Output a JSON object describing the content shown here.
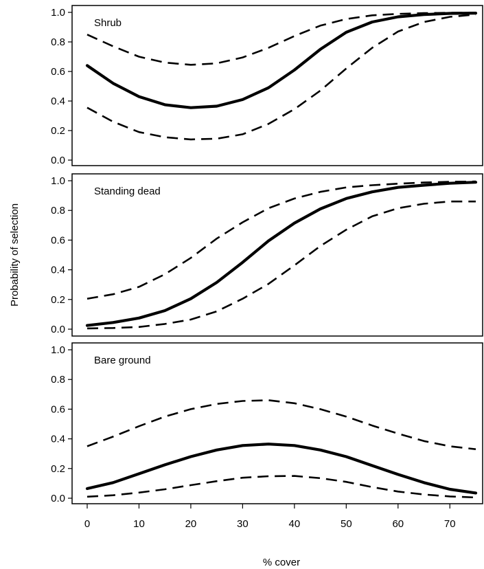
{
  "figure": {
    "ylabel": "Probability of selection",
    "xlabel": "% cover"
  },
  "chart_data": [
    {
      "type": "line",
      "title": "Shrub",
      "xlim": [
        0,
        75
      ],
      "ylim": [
        0,
        1
      ],
      "x": [
        0,
        5,
        10,
        15,
        20,
        25,
        30,
        35,
        40,
        45,
        50,
        55,
        60,
        65,
        70,
        75
      ],
      "series": [
        {
          "role": "estimate",
          "values": [
            0.64,
            0.52,
            0.43,
            0.375,
            0.355,
            0.365,
            0.41,
            0.49,
            0.61,
            0.75,
            0.865,
            0.935,
            0.97,
            0.985,
            0.993,
            0.995
          ]
        },
        {
          "role": "upper_ci",
          "values": [
            0.85,
            0.77,
            0.7,
            0.66,
            0.645,
            0.655,
            0.695,
            0.76,
            0.84,
            0.91,
            0.955,
            0.98,
            0.99,
            0.995,
            0.997,
            0.998
          ]
        },
        {
          "role": "lower_ci",
          "values": [
            0.355,
            0.26,
            0.19,
            0.155,
            0.14,
            0.145,
            0.175,
            0.245,
            0.345,
            0.47,
            0.62,
            0.76,
            0.87,
            0.935,
            0.97,
            0.985
          ]
        }
      ],
      "yticks": [
        0.0,
        0.2,
        0.4,
        0.6,
        0.8,
        1.0
      ],
      "ytick_labels": [
        "0.0",
        "0.2",
        "0.4",
        "0.6",
        "0.8",
        "1.0"
      ]
    },
    {
      "type": "line",
      "title": "Standing dead",
      "xlim": [
        0,
        75
      ],
      "ylim": [
        0,
        1
      ],
      "x": [
        0,
        5,
        10,
        15,
        20,
        25,
        30,
        35,
        40,
        45,
        50,
        55,
        60,
        65,
        70,
        75
      ],
      "series": [
        {
          "role": "estimate",
          "values": [
            0.025,
            0.045,
            0.075,
            0.125,
            0.205,
            0.315,
            0.45,
            0.595,
            0.715,
            0.81,
            0.88,
            0.925,
            0.955,
            0.97,
            0.983,
            0.99
          ]
        },
        {
          "role": "upper_ci",
          "values": [
            0.205,
            0.235,
            0.285,
            0.37,
            0.48,
            0.61,
            0.72,
            0.815,
            0.88,
            0.925,
            0.955,
            0.97,
            0.98,
            0.988,
            0.993,
            0.995
          ]
        },
        {
          "role": "lower_ci",
          "values": [
            0.005,
            0.008,
            0.015,
            0.035,
            0.065,
            0.12,
            0.205,
            0.305,
            0.43,
            0.56,
            0.67,
            0.76,
            0.815,
            0.845,
            0.86,
            0.86
          ]
        }
      ],
      "yticks": [
        0.0,
        0.2,
        0.4,
        0.6,
        0.8,
        1.0
      ],
      "ytick_labels": [
        "0.0",
        "0.2",
        "0.4",
        "0.6",
        "0.8",
        "1.0"
      ]
    },
    {
      "type": "line",
      "title": "Bare ground",
      "xlim": [
        0,
        75
      ],
      "ylim": [
        0,
        1
      ],
      "x": [
        0,
        5,
        10,
        15,
        20,
        25,
        30,
        35,
        40,
        45,
        50,
        55,
        60,
        65,
        70,
        75
      ],
      "series": [
        {
          "role": "estimate",
          "values": [
            0.065,
            0.105,
            0.165,
            0.225,
            0.28,
            0.325,
            0.355,
            0.365,
            0.355,
            0.325,
            0.28,
            0.22,
            0.16,
            0.105,
            0.06,
            0.035
          ]
        },
        {
          "role": "upper_ci",
          "values": [
            0.35,
            0.415,
            0.485,
            0.55,
            0.6,
            0.635,
            0.655,
            0.66,
            0.64,
            0.6,
            0.55,
            0.49,
            0.435,
            0.385,
            0.35,
            0.33
          ]
        },
        {
          "role": "lower_ci",
          "values": [
            0.01,
            0.02,
            0.038,
            0.06,
            0.088,
            0.115,
            0.138,
            0.148,
            0.15,
            0.135,
            0.11,
            0.075,
            0.045,
            0.025,
            0.012,
            0.005
          ]
        }
      ],
      "yticks": [
        0.0,
        0.2,
        0.4,
        0.6,
        0.8,
        1.0
      ],
      "ytick_labels": [
        "0.0",
        "0.2",
        "0.4",
        "0.6",
        "0.8",
        "1.0"
      ],
      "xticks": [
        0,
        10,
        20,
        30,
        40,
        50,
        60,
        70
      ],
      "xtick_labels": [
        "0",
        "10",
        "20",
        "30",
        "40",
        "50",
        "60",
        "70"
      ]
    }
  ]
}
